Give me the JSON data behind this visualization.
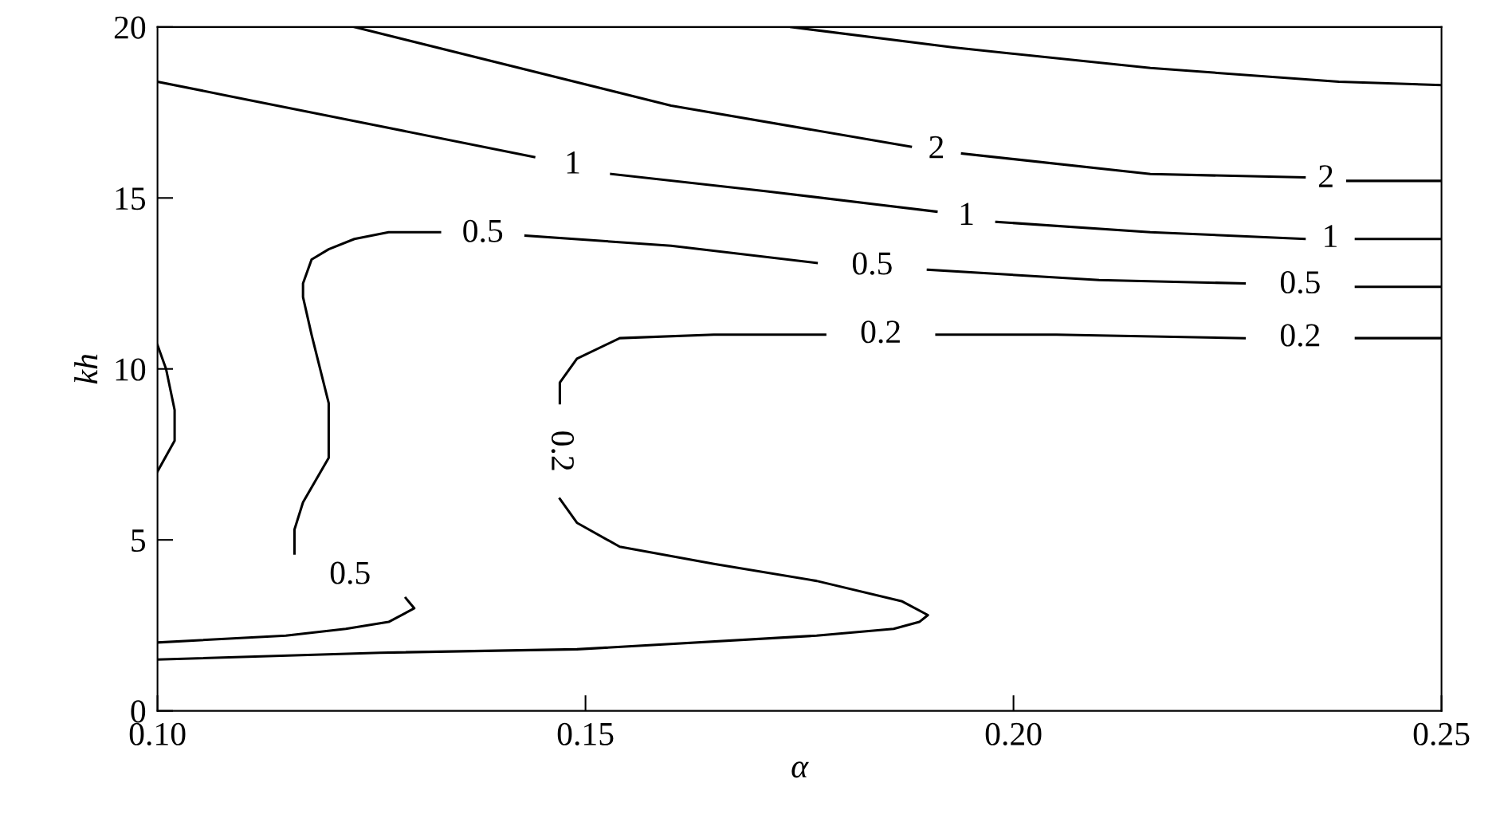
{
  "chart_data": {
    "type": "line",
    "xlabel": "α",
    "ylabel": "kh",
    "xlim": [
      0.1,
      0.25
    ],
    "ylim": [
      0,
      20
    ],
    "xticks": [
      {
        "value": 0.1,
        "label": "0.10"
      },
      {
        "value": 0.15,
        "label": "0.15"
      },
      {
        "value": 0.2,
        "label": "0.20"
      },
      {
        "value": 0.25,
        "label": "0.25"
      }
    ],
    "yticks": [
      0,
      5,
      10,
      15,
      20
    ],
    "grid": false,
    "legend": false,
    "marker": "none",
    "line_style": "solid",
    "series": [
      {
        "color": "#000000",
        "x": [
          0.174,
          0.193,
          0.216,
          0.238,
          0.25
        ],
        "values": [
          20,
          19.4,
          18.8,
          18.4,
          18.3
        ]
      },
      {
        "name": "2",
        "color": "#000000",
        "x": [
          0.123,
          0.16,
          0.188
        ],
        "values": [
          20,
          17.7,
          16.5
        ]
      },
      {
        "name": "2",
        "color": "#000000",
        "x": [
          0.194,
          0.216,
          0.234
        ],
        "values": [
          16.3,
          15.7,
          15.6
        ]
      },
      {
        "color": "#000000",
        "x": [
          0.239,
          0.25
        ],
        "values": [
          15.5,
          15.5
        ]
      },
      {
        "name": "1",
        "color": "#000000",
        "x": [
          0.1,
          0.108,
          0.126,
          0.144
        ],
        "values": [
          18.4,
          18.0,
          17.1,
          16.2
        ]
      },
      {
        "name": "1",
        "color": "#000000",
        "x": [
          0.153,
          0.171,
          0.191
        ],
        "values": [
          15.7,
          15.2,
          14.6
        ]
      },
      {
        "name": "1",
        "color": "#000000",
        "x": [
          0.198,
          0.216,
          0.234
        ],
        "values": [
          14.3,
          14.0,
          13.8
        ]
      },
      {
        "color": "#000000",
        "x": [
          0.24,
          0.25
        ],
        "values": [
          13.8,
          13.8
        ]
      },
      {
        "name": "0.5",
        "color": "#000000",
        "x": [
          0.1,
          0.115,
          0.122,
          0.127,
          0.13,
          0.129
        ],
        "values": [
          2.0,
          2.2,
          2.4,
          2.6,
          3.0,
          3.3
        ]
      },
      {
        "name": "0.5",
        "color": "#000000",
        "x": [
          0.116,
          0.116,
          0.117,
          0.12,
          0.12,
          0.12,
          0.118,
          0.117,
          0.117,
          0.118,
          0.12,
          0.123,
          0.127,
          0.133
        ],
        "values": [
          4.6,
          5.3,
          6.1,
          7.4,
          8.2,
          9.0,
          11.0,
          12.1,
          12.5,
          13.2,
          13.5,
          13.8,
          14.0,
          14.0
        ]
      },
      {
        "name": "0.5",
        "color": "#000000",
        "x": [
          0.143,
          0.16,
          0.177
        ],
        "values": [
          13.9,
          13.6,
          13.1
        ]
      },
      {
        "name": "0.5",
        "color": "#000000",
        "x": [
          0.19,
          0.21,
          0.227
        ],
        "values": [
          12.9,
          12.6,
          12.5
        ]
      },
      {
        "color": "#000000",
        "x": [
          0.24,
          0.25
        ],
        "values": [
          12.4,
          12.4
        ]
      },
      {
        "name": "0.2",
        "color": "#000000",
        "x": [
          0.25,
          0.24
        ],
        "values": [
          10.9,
          10.9
        ]
      },
      {
        "name": "0.2",
        "color": "#000000",
        "x": [
          0.227,
          0.205,
          0.191
        ],
        "values": [
          10.9,
          11.0,
          11.0
        ]
      },
      {
        "name": "0.2",
        "color": "#000000",
        "x": [
          0.178,
          0.165,
          0.154,
          0.149,
          0.147,
          0.147
        ],
        "values": [
          11.0,
          11.0,
          10.9,
          10.3,
          9.6,
          9.0
        ]
      },
      {
        "color": "#000000",
        "x": [
          0.147,
          0.149,
          0.154,
          0.165,
          0.177,
          0.187,
          0.19,
          0.189,
          0.186,
          0.177,
          0.149,
          0.126,
          0.1
        ],
        "values": [
          6.2,
          5.5,
          4.8,
          4.3,
          3.8,
          3.2,
          2.8,
          2.6,
          2.4,
          2.2,
          1.8,
          1.7,
          1.5
        ]
      },
      {
        "color": "#000000",
        "x": [
          0.1,
          0.101,
          0.102,
          0.102,
          0.1
        ],
        "values": [
          10.7,
          10.0,
          8.8,
          7.9,
          7.0
        ]
      }
    ]
  }
}
